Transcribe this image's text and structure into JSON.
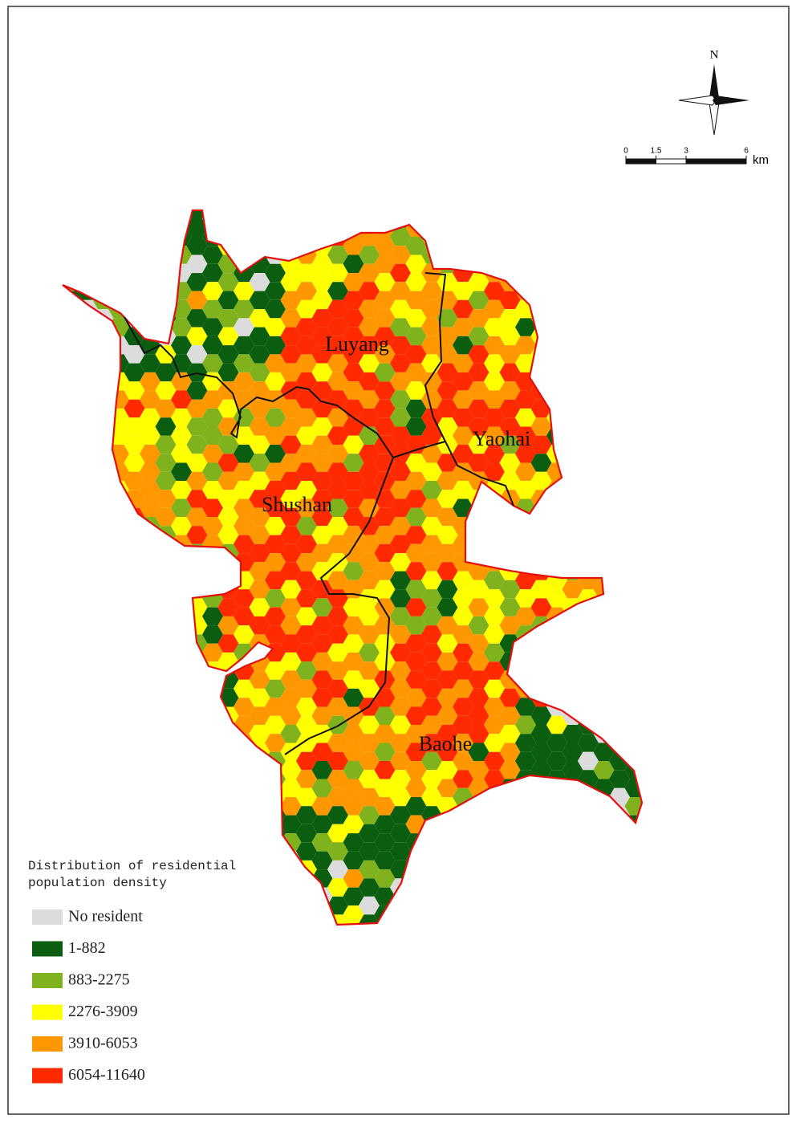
{
  "map": {
    "north": "N",
    "scale_bar": {
      "ticks": [
        0,
        1.5,
        3,
        6
      ],
      "unit": "km"
    },
    "districts": [
      {
        "name": "Luyang"
      },
      {
        "name": "Yaohai"
      },
      {
        "name": "Shushan"
      },
      {
        "name": "Baohe"
      }
    ],
    "legend": {
      "title_lines": [
        "Distribution of residential",
        "population density"
      ],
      "items": [
        {
          "label": "No resident",
          "color": "#dcdcdc"
        },
        {
          "label": "1-882",
          "color": "#0b5e0f"
        },
        {
          "label": "883-2275",
          "color": "#7fb21c"
        },
        {
          "label": "2276-3909",
          "color": "#ffff00"
        },
        {
          "label": "3910-6053",
          "color": "#ff9800"
        },
        {
          "label": "6054-11640",
          "color": "#ff2a00"
        }
      ]
    }
  }
}
